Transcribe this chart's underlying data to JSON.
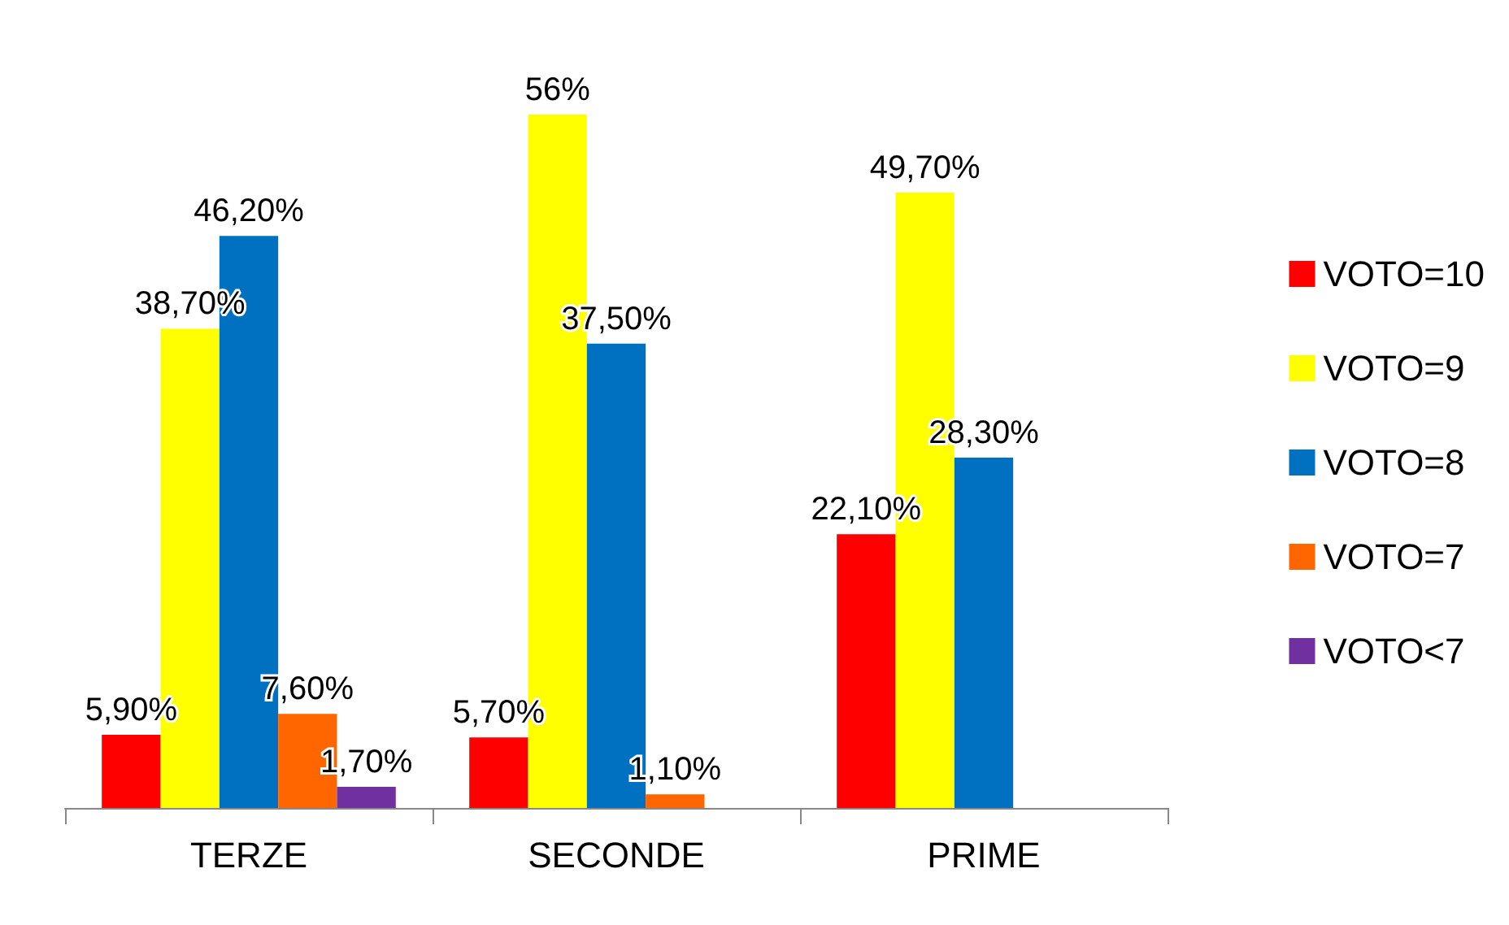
{
  "chart_data": {
    "type": "bar",
    "categories": [
      "TERZE",
      "SECONDE",
      "PRIME"
    ],
    "series": [
      {
        "name": "VOTO=10",
        "color": "#ff0000",
        "values": [
          5.9,
          5.7,
          22.1
        ],
        "value_labels": [
          "5,90%",
          "5,70%",
          "22,10%"
        ]
      },
      {
        "name": "VOTO=9",
        "color": "#ffff00",
        "values": [
          38.7,
          56,
          49.7
        ],
        "value_labels": [
          "38,70%",
          "56%",
          "49,70%"
        ]
      },
      {
        "name": "VOTO=8",
        "color": "#0070c0",
        "values": [
          46.2,
          37.5,
          28.3
        ],
        "value_labels": [
          "46,20%",
          "37,50%",
          "28,30%"
        ]
      },
      {
        "name": "VOTO=7",
        "color": "#ff6600",
        "values": [
          7.6,
          1.1,
          null
        ],
        "value_labels": [
          "7,60%",
          "1,10%",
          null
        ]
      },
      {
        "name": "VOTO<7",
        "color": "#7030a0",
        "values": [
          1.7,
          null,
          null
        ],
        "value_labels": [
          "1,70%",
          null,
          null
        ]
      }
    ],
    "legend": "right"
  }
}
